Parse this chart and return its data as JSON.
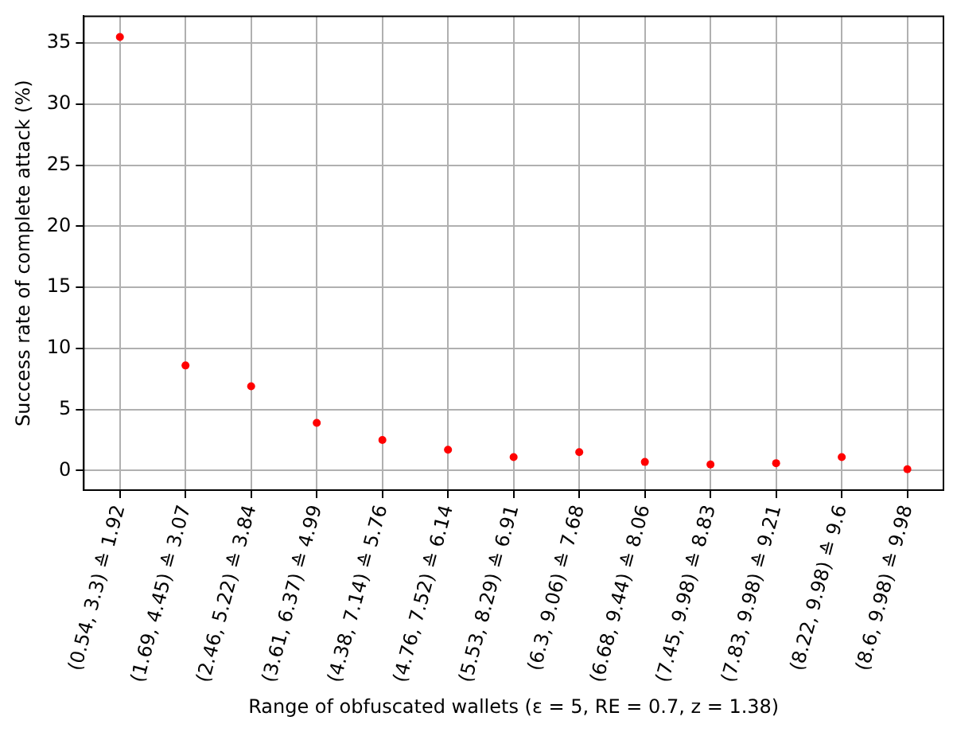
{
  "chart_data": {
    "type": "scatter",
    "xlabel": "Range of obfuscated wallets (ε = 5, RE = 0.7, z = 1.38)",
    "ylabel": "Success rate of complete attack (%)",
    "categories": [
      "(0.54, 3.3) ≙ 1.92",
      "(1.69, 4.45) ≙ 3.07",
      "(2.46, 5.22) ≙ 3.84",
      "(3.61, 6.37) ≙ 4.99",
      "(4.38, 7.14) ≙ 5.76",
      "(4.76, 7.52) ≙ 6.14",
      "(5.53, 8.29) ≙ 6.91",
      "(6.3, 9.06) ≙ 7.68",
      "(6.68, 9.44) ≙ 8.06",
      "(7.45, 9.98) ≙ 8.83",
      "(7.83, 9.98) ≙ 9.21",
      "(8.22, 9.98) ≙ 9.6",
      "(8.6, 9.98) ≙ 9.98"
    ],
    "series": [
      {
        "color": "#ff0000",
        "values": [
          35.5,
          8.6,
          6.9,
          3.9,
          2.5,
          1.7,
          1.1,
          1.5,
          0.7,
          0.5,
          0.6,
          1.1,
          0.1
        ]
      }
    ],
    "ylim": [
      -1.6,
      37.2
    ],
    "yticks": [
      0,
      5,
      10,
      15,
      20,
      25,
      30,
      35
    ],
    "grid": true,
    "marker": "circle",
    "legend": false
  }
}
